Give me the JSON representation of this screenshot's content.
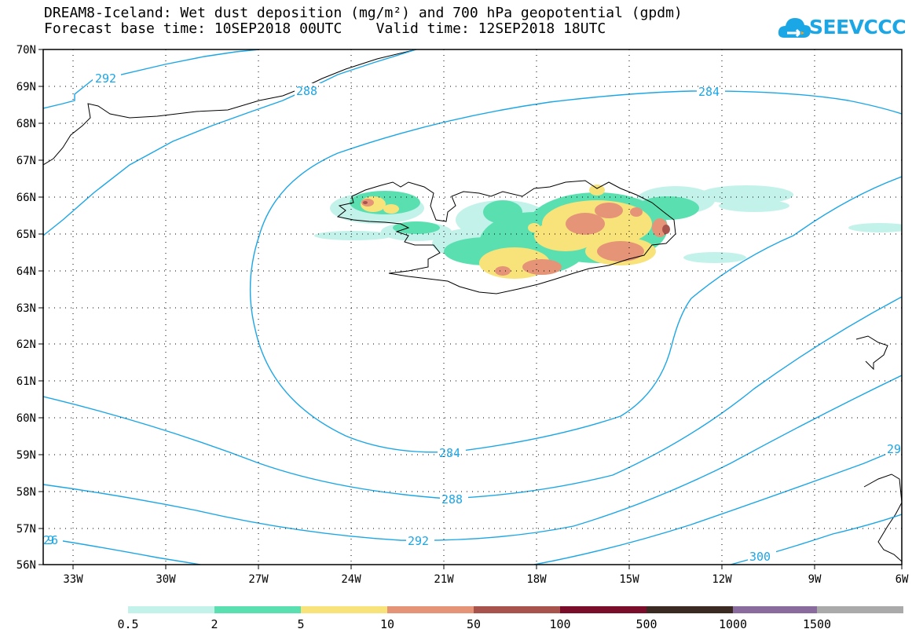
{
  "title": {
    "line1": "DREAM8-Iceland: Wet dust deposition (mg/m²) and 700 hPa geopotential (gpdm)",
    "line2": "Forecast base time: 10SEP2018 00UTC    Valid time: 12SEP2018 18UTC"
  },
  "logo": {
    "text": "SEEVCCC",
    "icon": "cloud-icon",
    "color": "#1ba6e6"
  },
  "map": {
    "lat_labels": [
      "70N",
      "69N",
      "68N",
      "67N",
      "66N",
      "65N",
      "64N",
      "63N",
      "62N",
      "61N",
      "60N",
      "59N",
      "58N",
      "57N",
      "56N"
    ],
    "lon_labels": [
      "33W",
      "30W",
      "27W",
      "24W",
      "21W",
      "18W",
      "15W",
      "12W",
      "9W",
      "6W"
    ],
    "contour_color": "#1ba6e6",
    "contour_labels": [
      "292",
      "288",
      "284",
      "284",
      "288",
      "292",
      "296",
      "300",
      "29"
    ]
  },
  "colorbar": {
    "labels": [
      "0.5",
      "2",
      "5",
      "10",
      "50",
      "100",
      "500",
      "1000",
      "1500"
    ],
    "colors": [
      "#c3f2ea",
      "#5ae0b0",
      "#f8e37a",
      "#e59477",
      "#a9534d",
      "#7a0d2a",
      "#3b2a22",
      "#8a6b9e",
      "#aaaaaa"
    ]
  }
}
